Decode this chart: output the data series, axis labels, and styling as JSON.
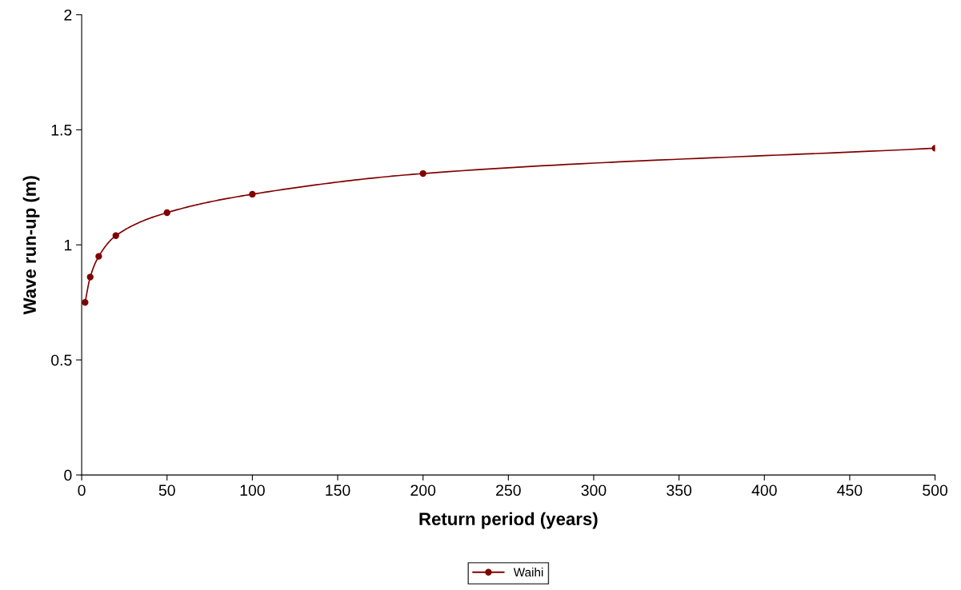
{
  "chart_data": {
    "type": "line",
    "xlabel": "Return period (years)",
    "ylabel": "Wave run-up (m)",
    "x": [
      2,
      5,
      10,
      20,
      50,
      100,
      200,
      500
    ],
    "series": [
      {
        "name": "Waihi",
        "color": "#800000",
        "values": [
          0.75,
          0.86,
          0.95,
          1.04,
          1.14,
          1.22,
          1.31,
          1.42
        ]
      }
    ],
    "xlim": [
      0,
      500
    ],
    "xticks": [
      0,
      50,
      100,
      150,
      200,
      250,
      300,
      350,
      400,
      450,
      500
    ],
    "ylim": [
      0,
      2
    ],
    "yticks": [
      0,
      0.5,
      1,
      1.5,
      2
    ],
    "grid": false,
    "legend": "bottom",
    "marker": "circle",
    "line_style": "solid"
  }
}
